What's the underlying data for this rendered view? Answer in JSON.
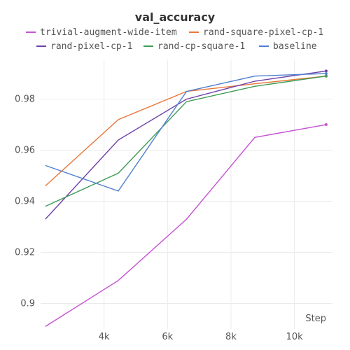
{
  "chart_data": {
    "type": "line",
    "title": "val_accuracy",
    "xlabel": "Step",
    "ylabel": "",
    "xlim": [
      2000,
      11200
    ],
    "ylim": [
      0.89,
      0.9955
    ],
    "x_ticks": [
      4000,
      6000,
      8000,
      10000
    ],
    "x_tick_labels": [
      "4k",
      "6k",
      "8k",
      "10k"
    ],
    "y_ticks": [
      0.9,
      0.92,
      0.94,
      0.96,
      0.98
    ],
    "y_tick_labels": [
      "0.9",
      "0.92",
      "0.94",
      "0.96",
      "0.98"
    ],
    "grid": true,
    "legend_position": "top",
    "series": [
      {
        "name": "trivial-augment-wide-item",
        "color": "#c353d1",
        "x": [
          2150,
          4450,
          6600,
          8750,
          11000
        ],
        "y": [
          0.891,
          0.909,
          0.933,
          0.965,
          0.97
        ]
      },
      {
        "name": "rand-square-pixel-cp-1",
        "color": "#e8783c",
        "x": [
          2150,
          4450,
          6600,
          8750,
          11000
        ],
        "y": [
          0.946,
          0.972,
          0.983,
          0.986,
          0.989
        ]
      },
      {
        "name": "rand-pixel-cp-1",
        "color": "#6e40a8",
        "x": [
          2150,
          4450,
          6600,
          8750,
          11000
        ],
        "y": [
          0.933,
          0.964,
          0.98,
          0.987,
          0.991
        ]
      },
      {
        "name": "rand-cp-square-1",
        "color": "#3f9b55",
        "x": [
          2150,
          4450,
          6600,
          8750,
          11000
        ],
        "y": [
          0.938,
          0.951,
          0.979,
          0.985,
          0.989
        ]
      },
      {
        "name": "baseline",
        "color": "#4f7fd0",
        "x": [
          2150,
          4450,
          6600,
          8750,
          11000
        ],
        "y": [
          0.954,
          0.944,
          0.983,
          0.989,
          0.99
        ]
      }
    ]
  }
}
